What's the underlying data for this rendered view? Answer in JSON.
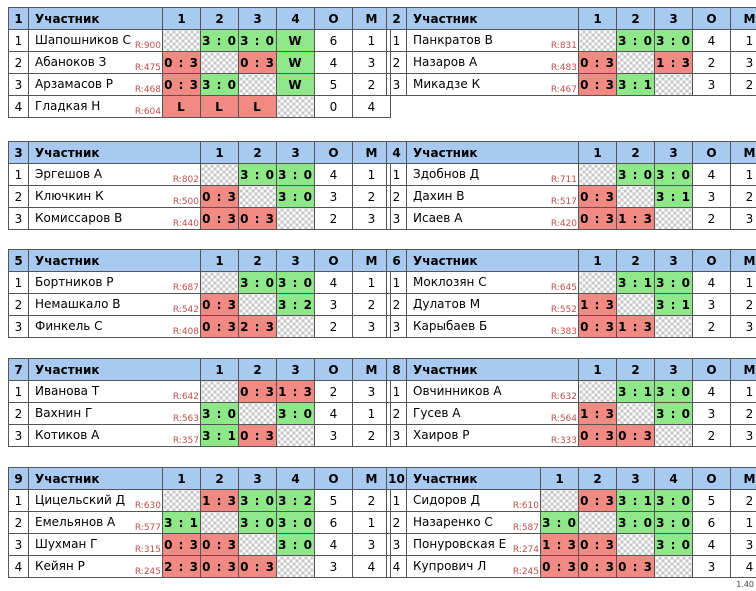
{
  "header": {
    "participant": "Участник",
    "o": "О",
    "m": "М"
  },
  "groups": [
    {
      "id": "1",
      "players": [
        {
          "n": "1",
          "name": "Шапошников С",
          "rating": "R:900",
          "cells": [
            "",
            "3 : 0",
            "3 : 0",
            "W"
          ],
          "o": "6",
          "m": "1"
        },
        {
          "n": "2",
          "name": "Абаноков З",
          "rating": "R:475",
          "cells": [
            "0 : 3",
            "",
            "0 : 3",
            "W"
          ],
          "o": "4",
          "m": "3"
        },
        {
          "n": "3",
          "name": "Арзамасов Р",
          "rating": "R:468",
          "cells": [
            "0 : 3",
            "3 : 0",
            "",
            "W"
          ],
          "o": "5",
          "m": "2"
        },
        {
          "n": "4",
          "name": "Гладкая Н",
          "rating": "R:604",
          "cells": [
            "L",
            "L",
            "L",
            ""
          ],
          "o": "0",
          "m": "4"
        }
      ]
    },
    {
      "id": "2",
      "players": [
        {
          "n": "1",
          "name": "Панкратов В",
          "rating": "R:831",
          "cells": [
            "",
            "3 : 0",
            "3 : 0"
          ],
          "o": "4",
          "m": "1"
        },
        {
          "n": "2",
          "name": "Назаров А",
          "rating": "R:483",
          "cells": [
            "0 : 3",
            "",
            "1 : 3"
          ],
          "o": "2",
          "m": "3"
        },
        {
          "n": "3",
          "name": "Микадзе К",
          "rating": "R:467",
          "cells": [
            "0 : 3",
            "3 : 1",
            ""
          ],
          "o": "3",
          "m": "2"
        }
      ]
    },
    {
      "id": "3",
      "players": [
        {
          "n": "1",
          "name": "Эргешов А",
          "rating": "R:802",
          "cells": [
            "",
            "3 : 0",
            "3 : 0"
          ],
          "o": "4",
          "m": "1"
        },
        {
          "n": "2",
          "name": "Ключкин К",
          "rating": "R:500",
          "cells": [
            "0 : 3",
            "",
            "3 : 0"
          ],
          "o": "3",
          "m": "2"
        },
        {
          "n": "3",
          "name": "Комиссаров В",
          "rating": "R:440",
          "cells": [
            "0 : 3",
            "0 : 3",
            ""
          ],
          "o": "2",
          "m": "3"
        }
      ]
    },
    {
      "id": "4",
      "players": [
        {
          "n": "1",
          "name": "Здобнов Д",
          "rating": "R:711",
          "cells": [
            "",
            "3 : 0",
            "3 : 0"
          ],
          "o": "4",
          "m": "1"
        },
        {
          "n": "2",
          "name": "Дахин В",
          "rating": "R:517",
          "cells": [
            "0 : 3",
            "",
            "3 : 1"
          ],
          "o": "3",
          "m": "2"
        },
        {
          "n": "3",
          "name": "Исаев А",
          "rating": "R:420",
          "cells": [
            "0 : 3",
            "1 : 3",
            ""
          ],
          "o": "2",
          "m": "3"
        }
      ]
    },
    {
      "id": "5",
      "players": [
        {
          "n": "1",
          "name": "Бортников Р",
          "rating": "R:687",
          "cells": [
            "",
            "3 : 0",
            "3 : 0"
          ],
          "o": "4",
          "m": "1"
        },
        {
          "n": "2",
          "name": "Немашкало В",
          "rating": "R:542",
          "cells": [
            "0 : 3",
            "",
            "3 : 2"
          ],
          "o": "3",
          "m": "2"
        },
        {
          "n": "3",
          "name": "Финкель С",
          "rating": "R:408",
          "cells": [
            "0 : 3",
            "2 : 3",
            ""
          ],
          "o": "2",
          "m": "3"
        }
      ]
    },
    {
      "id": "6",
      "players": [
        {
          "n": "1",
          "name": "Моклозян С",
          "rating": "R:645",
          "cells": [
            "",
            "3 : 1",
            "3 : 0"
          ],
          "o": "4",
          "m": "1"
        },
        {
          "n": "2",
          "name": "Дулатов М",
          "rating": "R:552",
          "cells": [
            "1 : 3",
            "",
            "3 : 1"
          ],
          "o": "3",
          "m": "2"
        },
        {
          "n": "3",
          "name": "Карыбаев Б",
          "rating": "R:383",
          "cells": [
            "0 : 3",
            "1 : 3",
            ""
          ],
          "o": "2",
          "m": "3"
        }
      ]
    },
    {
      "id": "7",
      "players": [
        {
          "n": "1",
          "name": "Иванова Т",
          "rating": "R:642",
          "cells": [
            "",
            "0 : 3",
            "1 : 3"
          ],
          "o": "2",
          "m": "3"
        },
        {
          "n": "2",
          "name": "Вахнин Г",
          "rating": "R:563",
          "cells": [
            "3 : 0",
            "",
            "3 : 0"
          ],
          "o": "4",
          "m": "1"
        },
        {
          "n": "3",
          "name": "Котиков А",
          "rating": "R:357",
          "cells": [
            "3 : 1",
            "0 : 3",
            ""
          ],
          "o": "3",
          "m": "2"
        }
      ]
    },
    {
      "id": "8",
      "players": [
        {
          "n": "1",
          "name": "Овчинников А",
          "rating": "R:632",
          "cells": [
            "",
            "3 : 1",
            "3 : 0"
          ],
          "o": "4",
          "m": "1"
        },
        {
          "n": "2",
          "name": "Гусев А",
          "rating": "R:564",
          "cells": [
            "1 : 3",
            "",
            "3 : 0"
          ],
          "o": "3",
          "m": "2"
        },
        {
          "n": "3",
          "name": "Хаиров Р",
          "rating": "R:333",
          "cells": [
            "0 : 3",
            "0 : 3",
            ""
          ],
          "o": "2",
          "m": "3"
        }
      ]
    },
    {
      "id": "9",
      "players": [
        {
          "n": "1",
          "name": "Цицельский Д",
          "rating": "R:630",
          "cells": [
            "",
            "1 : 3",
            "3 : 0",
            "3 : 2"
          ],
          "o": "5",
          "m": "2"
        },
        {
          "n": "2",
          "name": "Емельянов А",
          "rating": "R:577",
          "cells": [
            "3 : 1",
            "",
            "3 : 0",
            "3 : 0"
          ],
          "o": "6",
          "m": "1"
        },
        {
          "n": "3",
          "name": "Шухман Г",
          "rating": "R:315",
          "cells": [
            "0 : 3",
            "0 : 3",
            "",
            "3 : 0"
          ],
          "o": "4",
          "m": "3"
        },
        {
          "n": "4",
          "name": "Кейян Р",
          "rating": "R:245",
          "cells": [
            "2 : 3",
            "0 : 3",
            "0 : 3",
            ""
          ],
          "o": "3",
          "m": "4"
        }
      ]
    },
    {
      "id": "10",
      "players": [
        {
          "n": "1",
          "name": "Сидоров Д",
          "rating": "R:610",
          "cells": [
            "",
            "0 : 3",
            "3 : 1",
            "3 : 0"
          ],
          "o": "5",
          "m": "2"
        },
        {
          "n": "2",
          "name": "Назаренко С",
          "rating": "R:587",
          "cells": [
            "3 : 0",
            "",
            "3 : 0",
            "3 : 0"
          ],
          "o": "6",
          "m": "1"
        },
        {
          "n": "3",
          "name": "Понуровская Е",
          "rating": "R:274",
          "cells": [
            "1 : 3",
            "0 : 3",
            "",
            "3 : 0"
          ],
          "o": "4",
          "m": "3"
        },
        {
          "n": "4",
          "name": "Купрович Л",
          "rating": "R:245",
          "cells": [
            "0 : 3",
            "0 : 3",
            "0 : 3",
            ""
          ],
          "o": "3",
          "m": "4"
        }
      ]
    }
  ],
  "footer": {
    "version": "1.40"
  },
  "colors": {
    "header": "#a8c9f0",
    "win": "#8ee88a",
    "loss": "#f28a84",
    "rating": "#c0504d"
  }
}
